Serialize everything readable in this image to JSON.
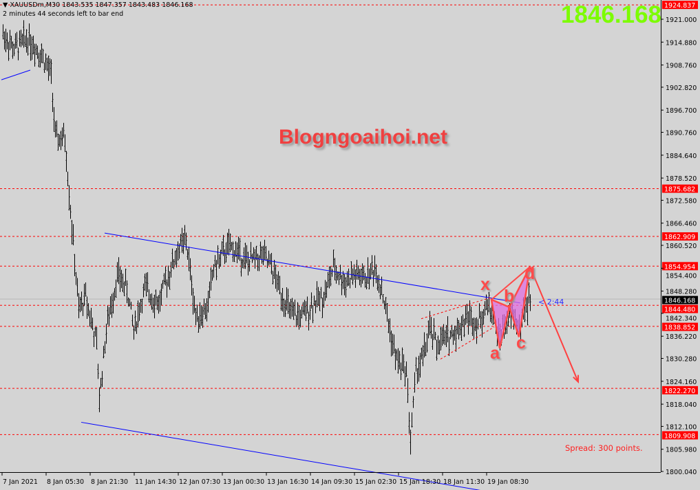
{
  "header": {
    "symbol_line": "XAUUSDm,M30  1843.535 1847.357 1843.483 1846.168",
    "timer_line": "2 minutes 44 seconds left to bar end"
  },
  "current_price_big": "1846.168",
  "watermark": "Blogngoaihoi.net",
  "spread_text": "Spread: 300 points.",
  "bar_timer": "< 2:44",
  "pattern_labels": {
    "x": "x",
    "a": "a",
    "b": "b",
    "c": "c",
    "d": "d"
  },
  "colors": {
    "background": "#d4d4d4",
    "bars": "#000000",
    "trendline": "#0000ff",
    "level": "#ff0000",
    "pattern_fill": "#e070e0",
    "pattern_line": "#ff4a4a",
    "price_big": "#7cfc00"
  },
  "chart_data": {
    "type": "ohlc",
    "symbol": "XAUUSDm",
    "timeframe": "M30",
    "ylim": [
      1800.04,
      1924.837
    ],
    "y_ticks": [
      "1921.000",
      "1914.880",
      "1908.760",
      "1902.820",
      "1896.700",
      "1890.760",
      "1884.640",
      "1878.520",
      "1872.580",
      "1866.460",
      "1860.520",
      "1854.400",
      "1848.280",
      "1842.340",
      "1836.220",
      "1830.280",
      "1824.160",
      "1818.040",
      "1812.100",
      "1805.980",
      "1800.040"
    ],
    "x_ticks": [
      {
        "bar": 1,
        "label": "7 Jan 2021"
      },
      {
        "bar": 33,
        "label": "8 Jan 05:30"
      },
      {
        "bar": 65,
        "label": "8 Jan 21:30"
      },
      {
        "bar": 97,
        "label": "11 Jan 14:30"
      },
      {
        "bar": 129,
        "label": "12 Jan 07:30"
      },
      {
        "bar": 161,
        "label": "13 Jan 00:30"
      },
      {
        "bar": 193,
        "label": "13 Jan 16:30"
      },
      {
        "bar": 225,
        "label": "14 Jan 09:30"
      },
      {
        "bar": 257,
        "label": "15 Jan 02:30"
      },
      {
        "bar": 289,
        "label": "15 Jan 18:30"
      },
      {
        "bar": 321,
        "label": "18 Jan 11:30"
      },
      {
        "bar": 353,
        "label": "19 Jan 08:30"
      }
    ],
    "price_levels": [
      "1924.837",
      "1875.682",
      "1862.909",
      "1854.954",
      "1844.480",
      "1838.852",
      "1822.270",
      "1809.908"
    ],
    "current_price": "1846.168",
    "price_path": [
      [
        2,
        1917
      ],
      [
        10,
        1913
      ],
      [
        20,
        1916
      ],
      [
        30,
        1911.5
      ],
      [
        37,
        1906
      ],
      [
        40,
        1889
      ],
      [
        47,
        1889
      ],
      [
        52,
        1865.5
      ],
      [
        57,
        1843
      ],
      [
        62,
        1847
      ],
      [
        70,
        1834
      ],
      [
        72,
        1819.5
      ],
      [
        77,
        1838
      ],
      [
        85,
        1852.6
      ],
      [
        92,
        1849
      ],
      [
        97,
        1838
      ],
      [
        105,
        1849
      ],
      [
        115,
        1845
      ],
      [
        122,
        1852.6
      ],
      [
        130,
        1860
      ],
      [
        135,
        1861.8
      ],
      [
        142,
        1841.6
      ],
      [
        150,
        1843.4
      ],
      [
        155,
        1854.5
      ],
      [
        165,
        1860
      ],
      [
        172,
        1859
      ],
      [
        180,
        1856
      ],
      [
        190,
        1858
      ],
      [
        197,
        1854.5
      ],
      [
        205,
        1847
      ],
      [
        212,
        1841.6
      ],
      [
        220,
        1841.6
      ],
      [
        227,
        1845
      ],
      [
        235,
        1847
      ],
      [
        242,
        1854.5
      ],
      [
        250,
        1850.8
      ],
      [
        257,
        1852.6
      ],
      [
        265,
        1851.7
      ],
      [
        272,
        1854.5
      ],
      [
        277,
        1849
      ],
      [
        282,
        1839.7
      ],
      [
        287,
        1830.6
      ],
      [
        295,
        1827
      ],
      [
        298,
        1808.5
      ],
      [
        302,
        1827
      ],
      [
        307,
        1830.6
      ],
      [
        312,
        1838
      ],
      [
        317,
        1834
      ],
      [
        325,
        1836
      ],
      [
        332,
        1838
      ],
      [
        340,
        1841.6
      ],
      [
        347,
        1839.7
      ],
      [
        355,
        1845
      ],
      [
        362,
        1836
      ],
      [
        367,
        1839.7
      ],
      [
        372,
        1842.5
      ],
      [
        377,
        1838
      ],
      [
        382,
        1844.3
      ],
      [
        385,
        1846.2
      ]
    ],
    "trendlines": [
      {
        "from": [
          76,
          1863.8
        ],
        "to": [
          378,
          1845.1
        ]
      },
      {
        "from": [
          59,
          1813.2
        ],
        "to": [
          352,
          1794.8
        ]
      },
      {
        "from": [
          1,
          1904.8
        ],
        "to": [
          22,
          1907.4
        ]
      }
    ],
    "channel_lines": [
      {
        "from": [
          306,
          1840.9
        ],
        "to": [
          357,
          1846.6
        ]
      },
      {
        "from": [
          320,
          1830.1
        ],
        "to": [
          359,
          1838.7
        ]
      }
    ],
    "harmonic_pattern": {
      "X": [
        357,
        1846
      ],
      "A": [
        363,
        1833
      ],
      "B": [
        370,
        1844
      ],
      "C": [
        377,
        1836
      ],
      "D": [
        385,
        1854.8
      ]
    },
    "projection_arrow": {
      "from": [
        385,
        1854.8
      ],
      "to": [
        420,
        1824
      ]
    }
  }
}
